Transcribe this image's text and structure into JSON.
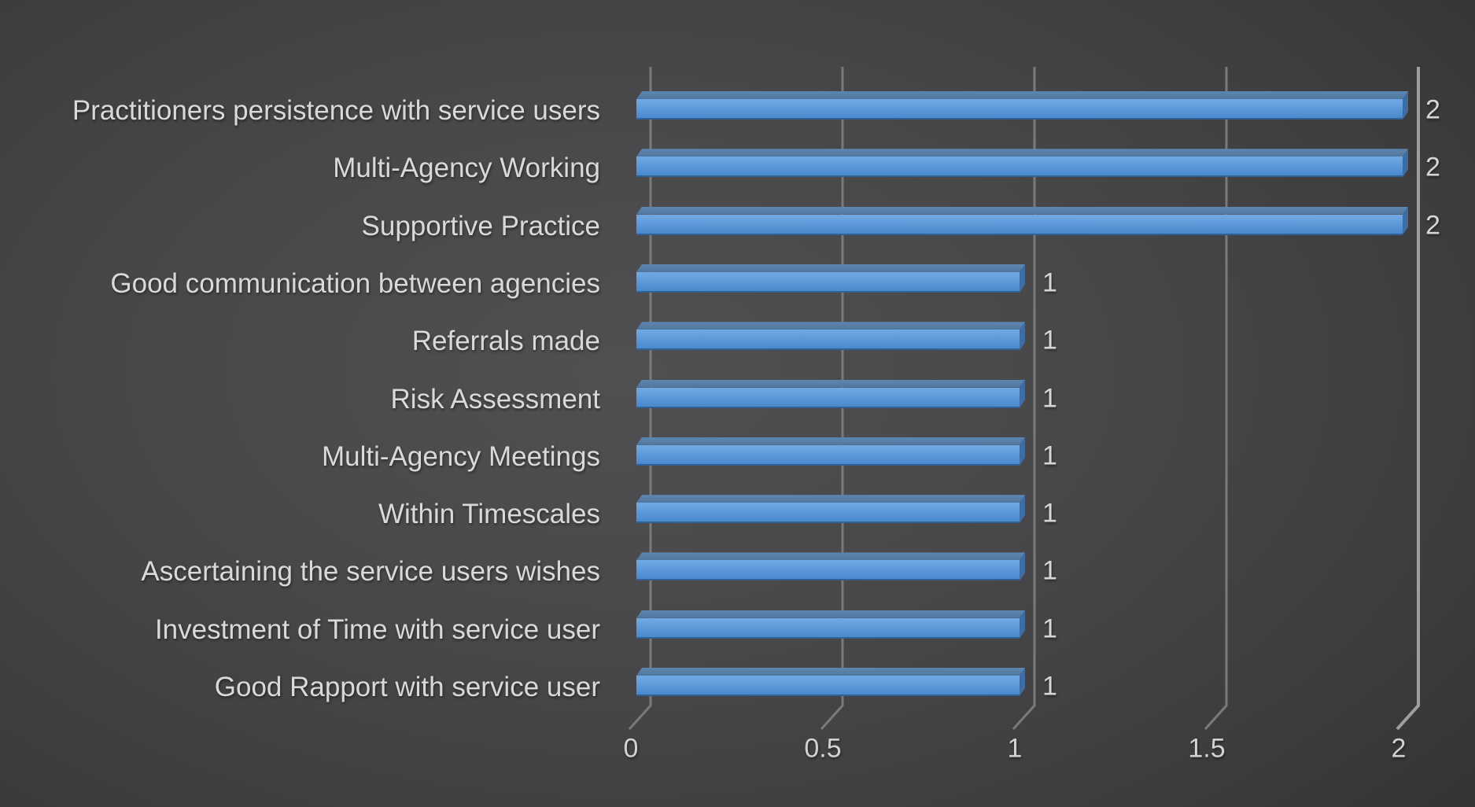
{
  "chart_data": {
    "type": "bar",
    "orientation": "horizontal",
    "style": "3d-dark-theme",
    "title": "",
    "xlabel": "",
    "ylabel": "",
    "xlim": [
      0,
      2
    ],
    "grid": "vertical",
    "legend": "none",
    "categories": [
      "Practitioners persistence with service users",
      "Multi-Agency Working",
      "Supportive Practice",
      "Good communication between agencies",
      "Referrals made",
      "Risk Assessment",
      "Multi-Agency Meetings",
      "Within Timescales",
      "Ascertaining the service users wishes",
      "Investment of Time with service user",
      "Good Rapport with service user"
    ],
    "values": [
      2,
      2,
      2,
      1,
      1,
      1,
      1,
      1,
      1,
      1,
      1
    ],
    "data_labels": [
      "2",
      "2",
      "2",
      "1",
      "1",
      "1",
      "1",
      "1",
      "1",
      "1",
      "1"
    ],
    "x_ticks": [
      "0",
      "0.5",
      "1",
      "1.5",
      "2"
    ],
    "colors": {
      "bar_front_top": "#6fa7e2",
      "bar_front_bottom": "#4586cb",
      "bar_top_face": "#5d86b0",
      "bar_top_face_dark": "#52779d",
      "bar_side_face": "#3d6da4",
      "category_label": "#d9d9d9",
      "axis_label": "#d2d2d2",
      "data_label": "#d6d6d6",
      "gridline": "#7a7a7a",
      "gridline_right": "#9e9e9e",
      "background_center": "#505052",
      "background_edge": "#242426"
    }
  }
}
